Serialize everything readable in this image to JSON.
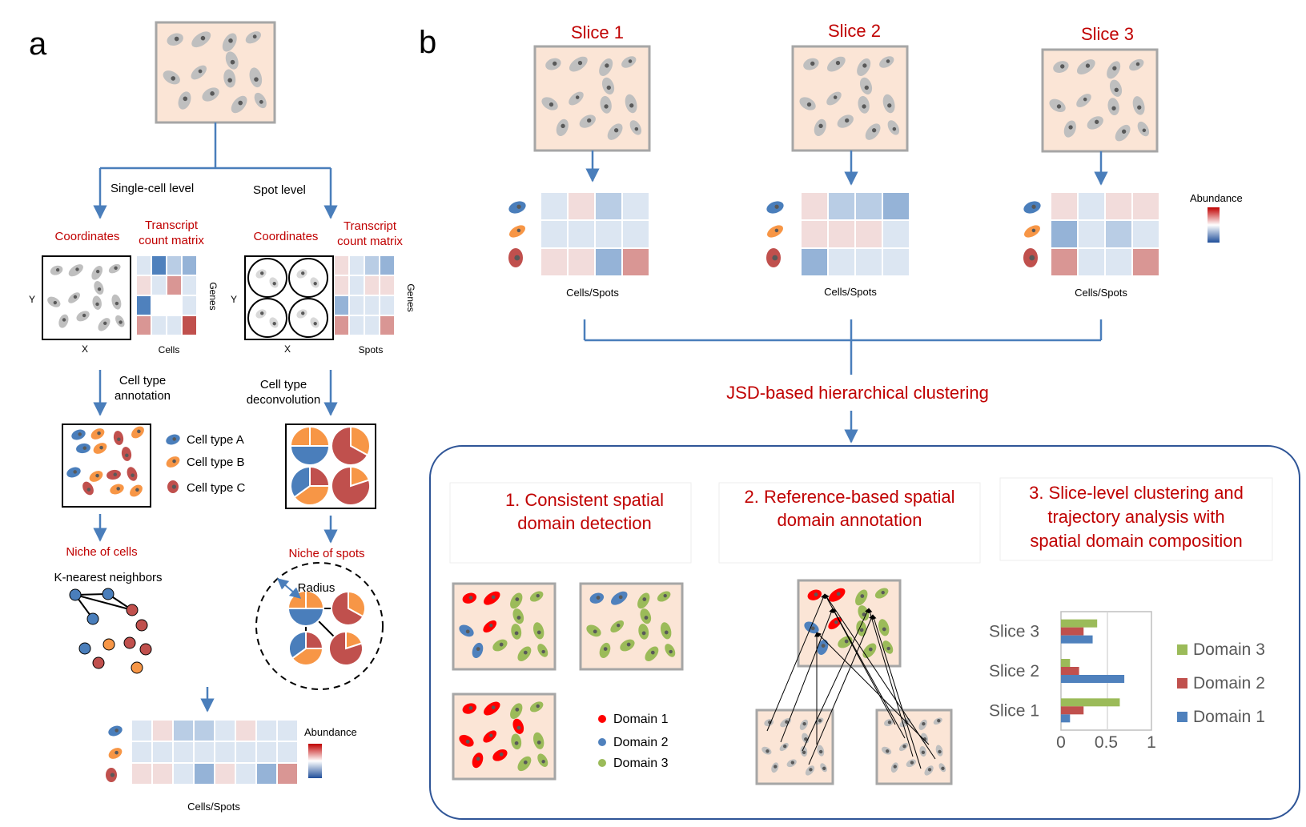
{
  "colors": {
    "tissue_fill": "#fbe5d6",
    "tissue_border": "#a6a6a6",
    "arrow": "#4a7ebb",
    "red_label": "#c00000",
    "cell_gray": "#bfbfbf",
    "nucleus": "#595959",
    "type_a": "#4a7ebb",
    "type_b": "#f79646",
    "type_c": "#c0504d",
    "domain1": "#ff0000",
    "domain2": "#4f81bd",
    "domain3": "#9bbb59",
    "bar_domain1": "#4f81bd",
    "bar_domain2": "#c0504d",
    "bar_domain3": "#9bbb59"
  },
  "panel_a": {
    "letter": "a",
    "single_cell_level": "Single-cell level",
    "spot_level": "Spot level",
    "coordinates": "Coordinates",
    "transcript_line1": "Transcript",
    "transcript_line2": "count matrix",
    "axis_y": "Y",
    "axis_x": "X",
    "genes": "Genes",
    "cells": "Cells",
    "spots": "Spots",
    "annotation_line1": "Cell type",
    "annotation_line2": "annotation",
    "deconv_line1": "Cell type",
    "deconv_line2": "deconvolution",
    "legend": [
      "Cell type A",
      "Cell type B",
      "Cell type C"
    ],
    "niche_cells": "Niche of cells",
    "niche_spots": "Niche of spots",
    "knn": "K-nearest neighbors",
    "radius": "Radius",
    "abundance": "Abundance",
    "cells_spots": "Cells/Spots"
  },
  "panel_b": {
    "letter": "b",
    "slices": [
      "Slice 1",
      "Slice 2",
      "Slice 3"
    ],
    "cells_spots": "Cells/Spots",
    "abundance": "Abundance",
    "jsd": "JSD-based hierarchical clustering",
    "step1": [
      "1.  Consistent spatial",
      "domain detection"
    ],
    "step2": [
      "2. Reference-based spatial",
      "domain annotation"
    ],
    "step3": [
      "3. Slice-level clustering and",
      "trajectory analysis with",
      "spatial domain composition"
    ],
    "domain_legend": [
      "Domain 1",
      "Domain 2",
      "Domain 3"
    ]
  },
  "chart_data": {
    "type": "bar",
    "orientation": "horizontal",
    "categories": [
      "Slice 3",
      "Slice 2",
      "Slice 1"
    ],
    "series": [
      {
        "name": "Domain 3",
        "values": [
          0.4,
          0.1,
          0.65
        ]
      },
      {
        "name": "Domain 2",
        "values": [
          0.25,
          0.2,
          0.25
        ]
      },
      {
        "name": "Domain 1",
        "values": [
          0.35,
          0.7,
          0.1
        ]
      }
    ],
    "xlim": [
      0,
      1
    ],
    "xticks": [
      "0",
      "0.5",
      "1"
    ],
    "legend_position": "right"
  }
}
